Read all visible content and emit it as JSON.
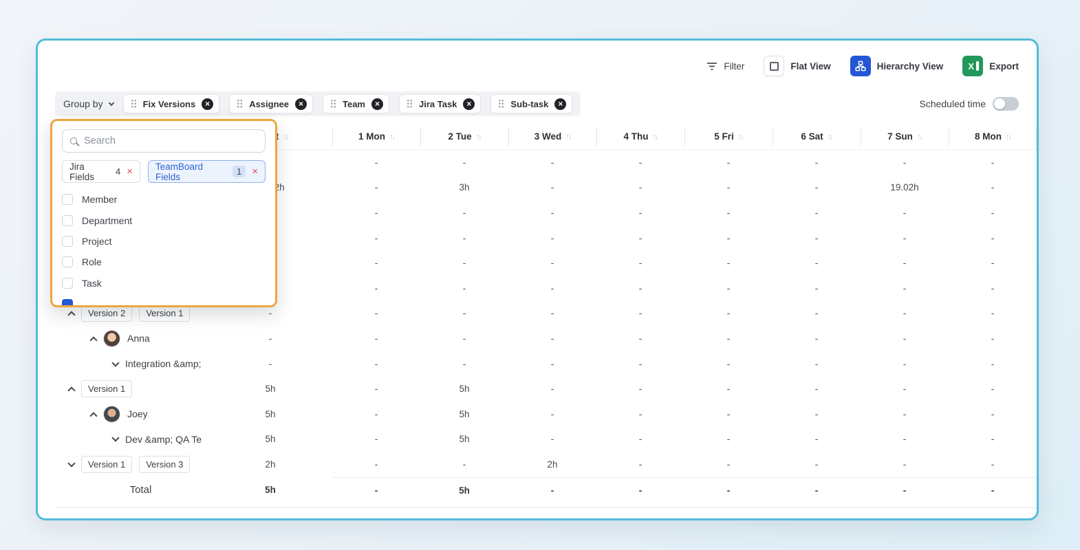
{
  "header_actions": {
    "filter": "Filter",
    "flat_view": "Flat View",
    "hierarchy_view": "Hierarchy View",
    "export": "Export"
  },
  "group_by": {
    "label": "Group by",
    "chips": [
      {
        "label": "Fix Versions"
      },
      {
        "label": "Assignee"
      },
      {
        "label": "Team"
      },
      {
        "label": "Jira Task"
      },
      {
        "label": "Sub-task"
      }
    ]
  },
  "scheduled_time": {
    "label": "Scheduled time",
    "enabled": false
  },
  "field_picker": {
    "search_placeholder": "Search",
    "filters": [
      {
        "label": "Jira Fields",
        "count": "4",
        "selected": false
      },
      {
        "label": "TeamBoard Fields",
        "count": "1",
        "selected": true
      }
    ],
    "options": [
      {
        "label": "Member",
        "checked": false
      },
      {
        "label": "Department",
        "checked": false
      },
      {
        "label": "Project",
        "checked": false
      },
      {
        "label": "Role",
        "checked": false
      },
      {
        "label": "Task",
        "checked": false
      }
    ],
    "partial_option": {
      "checked": true
    }
  },
  "table": {
    "first_column_header": "Spent",
    "sort_glyph": "↑↓",
    "day_columns": [
      "1 Mon",
      "2 Tue",
      "3 Wed",
      "4 Thu",
      "5 Fri",
      "6 Sat",
      "7 Sun",
      "8 Mon"
    ],
    "rows": [
      {
        "hidden": true,
        "spent": "-",
        "days": [
          "-",
          "-",
          "-",
          "-",
          "-",
          "-",
          "-",
          "-"
        ]
      },
      {
        "hidden": true,
        "spent": "22.02h",
        "days": [
          "-",
          "3h",
          "-",
          "-",
          "-",
          "-",
          "19.02h",
          "-"
        ]
      },
      {
        "hidden": true,
        "spent": "-",
        "days": [
          "-",
          "-",
          "-",
          "-",
          "-",
          "-",
          "-",
          "-"
        ]
      },
      {
        "hidden": true,
        "spent": "-",
        "days": [
          "-",
          "-",
          "-",
          "-",
          "-",
          "-",
          "-",
          "-"
        ]
      },
      {
        "hidden": true,
        "spent": "-",
        "days": [
          "-",
          "-",
          "-",
          "-",
          "-",
          "-",
          "-",
          "-"
        ]
      },
      {
        "hidden": true,
        "spent": "-",
        "days": [
          "-",
          "-",
          "-",
          "-",
          "-",
          "-",
          "-",
          "-"
        ]
      },
      {
        "indent": 0,
        "chevron": "up",
        "tags": [
          "Version 2",
          "Version 1"
        ],
        "spent": "-",
        "days": [
          "-",
          "-",
          "-",
          "-",
          "-",
          "-",
          "-",
          "-"
        ]
      },
      {
        "indent": 1,
        "chevron": "up",
        "avatar": "anna",
        "name": "Anna",
        "spent": "-",
        "days": [
          "-",
          "-",
          "-",
          "-",
          "-",
          "-",
          "-",
          "-"
        ]
      },
      {
        "indent": 2,
        "chevron": "down",
        "name": "Integration &amp;",
        "spent": "-",
        "days": [
          "-",
          "-",
          "-",
          "-",
          "-",
          "-",
          "-",
          "-"
        ]
      },
      {
        "indent": 0,
        "chevron": "up",
        "tags": [
          "Version 1"
        ],
        "spent": "5h",
        "days": [
          "-",
          "5h",
          "-",
          "-",
          "-",
          "-",
          "-",
          "-"
        ]
      },
      {
        "indent": 1,
        "chevron": "up",
        "avatar": "joey",
        "name": "Joey",
        "spent": "5h",
        "days": [
          "-",
          "5h",
          "-",
          "-",
          "-",
          "-",
          "-",
          "-"
        ]
      },
      {
        "indent": 2,
        "chevron": "down",
        "name": "Dev &amp; QA Te",
        "spent": "5h",
        "days": [
          "-",
          "5h",
          "-",
          "-",
          "-",
          "-",
          "-",
          "-"
        ]
      },
      {
        "indent": 0,
        "chevron": "down",
        "tags": [
          "Version 1",
          "Version 3"
        ],
        "spent": "2h",
        "days": [
          "-",
          "-",
          "2h",
          "-",
          "-",
          "-",
          "-",
          "-"
        ]
      }
    ],
    "total": {
      "label": "Total",
      "spent": "5h",
      "days": [
        "-",
        "5h",
        "-",
        "-",
        "-",
        "-",
        "-",
        "-"
      ]
    }
  },
  "colors": {
    "card_border": "#52bcda",
    "panel_border": "#eba73e",
    "accent_blue": "#2457d5",
    "excel_green": "#22995a",
    "danger_red": "#e5484d"
  }
}
